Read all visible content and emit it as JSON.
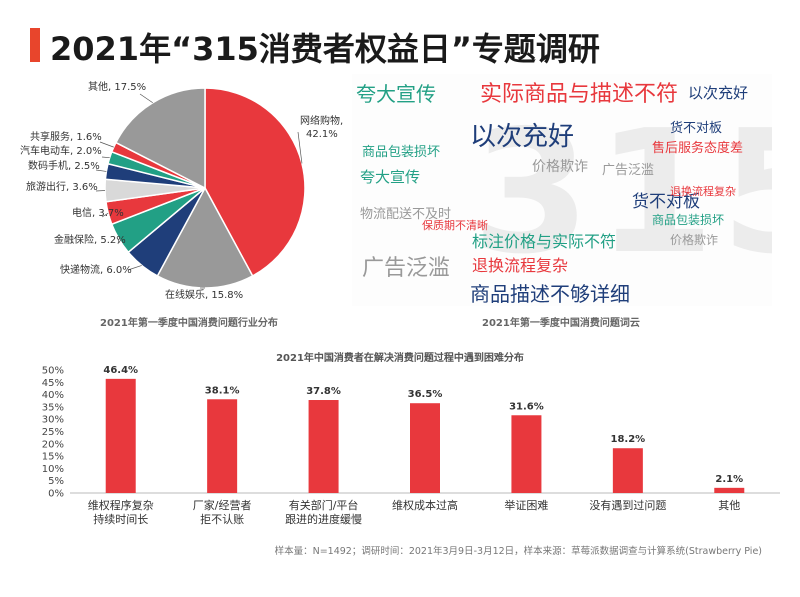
{
  "page": {
    "title": "2021年“315消费者权益日”专题调研",
    "footnote": "样本量：N=1492；调研时间：2021年3月9日-3月12日，样本来源：草莓派数据调查与计算系统(Strawberry Pie)"
  },
  "colors": {
    "accent": "#e8452c",
    "red": "#e8383d",
    "gray": "#999999",
    "navy": "#1f3e7a",
    "teal": "#22a085"
  },
  "chart_data": [
    {
      "type": "pie",
      "title": "2021年第一季度中国消费问题行业分布",
      "slices": [
        {
          "label": "网络购物, 42.1%",
          "value": 42.1,
          "color": "#e8383d"
        },
        {
          "label": "在线娱乐, 15.8%",
          "value": 15.8,
          "color": "#999999"
        },
        {
          "label": "快递物流, 6.0%",
          "value": 6.0,
          "color": "#1f3e7a"
        },
        {
          "label": "金融保险, 5.2%",
          "value": 5.2,
          "color": "#22a085"
        },
        {
          "label": "电信, 3.7%",
          "value": 3.7,
          "color": "#e8383d"
        },
        {
          "label": "旅游出行, 3.6%",
          "value": 3.6,
          "color": "#d9d9d9"
        },
        {
          "label": "数码手机, 2.5%",
          "value": 2.5,
          "color": "#1f3e7a"
        },
        {
          "label": "汽车电动车, 2.0%",
          "value": 2.0,
          "color": "#22a085"
        },
        {
          "label": "共享服务, 1.6%",
          "value": 1.6,
          "color": "#e8383d"
        },
        {
          "label": "其他, 17.5%",
          "value": 17.5,
          "color": "#999999"
        }
      ]
    },
    {
      "type": "wordcloud",
      "title": "2021年第一季度中国消费问题词云",
      "words": [
        {
          "text": "夸大宣传",
          "color": "#22a085"
        },
        {
          "text": "实际商品与描述不符",
          "color": "#e8383d"
        },
        {
          "text": "以次充好",
          "color": "#1f3e7a"
        },
        {
          "text": "以次充好",
          "color": "#1f3e7a"
        },
        {
          "text": "商品包装损坏",
          "color": "#22a085"
        },
        {
          "text": "售后服务态度差",
          "color": "#e8383d"
        },
        {
          "text": "价格欺诈",
          "color": "#999999"
        },
        {
          "text": "夸大宣传",
          "color": "#22a085"
        },
        {
          "text": "货不对板",
          "color": "#1f3e7a"
        },
        {
          "text": "广告泛滥",
          "color": "#999999"
        },
        {
          "text": "物流配送不及时",
          "color": "#999999"
        },
        {
          "text": "标注价格与实际不符",
          "color": "#22a085"
        },
        {
          "text": "保质期不清晰",
          "color": "#e8383d"
        },
        {
          "text": "退换流程复杂",
          "color": "#e8383d"
        },
        {
          "text": "广告泛滥",
          "color": "#999999"
        },
        {
          "text": "商品描述不够详细",
          "color": "#1f3e7a"
        },
        {
          "text": "价格欺诈",
          "color": "#999999"
        },
        {
          "text": "货不对板",
          "color": "#1f3e7a"
        },
        {
          "text": "商品包装损坏",
          "color": "#22a085"
        },
        {
          "text": "退换流程复杂",
          "color": "#e8383d"
        }
      ]
    },
    {
      "type": "bar",
      "title": "2021年中国消费者在解决消费问题过程中遇到困难分布",
      "categories": [
        "维权程序复杂\n持续时间长",
        "厂家/经营者\n拒不认账",
        "有关部门/平台\n跟进的进度缓慢",
        "维权成本过高",
        "举证困难",
        "没有遇到过问题",
        "其他"
      ],
      "values": [
        46.4,
        38.1,
        37.8,
        36.5,
        31.6,
        18.2,
        2.1
      ],
      "value_labels": [
        "46.4%",
        "38.1%",
        "37.8%",
        "36.5%",
        "31.6%",
        "18.2%",
        "2.1%"
      ],
      "yticks": [
        "0%",
        "5%",
        "10%",
        "15%",
        "20%",
        "25%",
        "30%",
        "35%",
        "40%",
        "45%",
        "50%"
      ],
      "ylim": [
        0,
        50
      ],
      "color": "#e8383d"
    }
  ]
}
